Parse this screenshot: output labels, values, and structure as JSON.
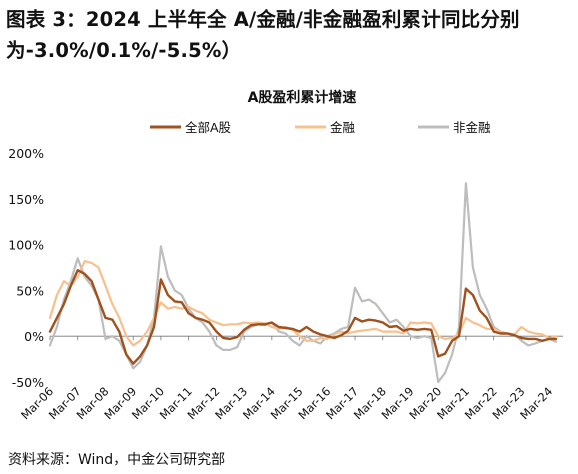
{
  "figure_title": "图表 3：2024 上半年全 A/金融/非金融盈利累计同比分别为-3.0%/0.1%/-5.5%）",
  "source_note": "资料来源：Wind，中金公司研究部",
  "colors": {
    "all_a": "#A0521E",
    "finance": "#F7C08C",
    "non_finance": "#BDBDBD"
  },
  "chart_data": {
    "type": "line",
    "title": "A股盈利累计增速",
    "legend_position": "top",
    "x_tick_labels": [
      "Mar-06",
      "Mar-07",
      "Mar-08",
      "Mar-09",
      "Mar-10",
      "Mar-11",
      "Mar-12",
      "Mar-13",
      "Mar-14",
      "Mar-15",
      "Mar-16",
      "Mar-17",
      "Mar-18",
      "Mar-19",
      "Mar-20",
      "Mar-21",
      "Mar-22",
      "Mar-23",
      "Mar-24"
    ],
    "y_ticks": [
      "-50%",
      "0%",
      "50%",
      "100%",
      "150%",
      "200%"
    ],
    "ylim": [
      -50,
      200
    ],
    "xlim": [
      2006.0,
      2024.5
    ],
    "series": [
      {
        "name": "全部A股",
        "key": "all_a",
        "x": [
          2006.0,
          2006.25,
          2006.5,
          2006.75,
          2007.0,
          2007.25,
          2007.5,
          2007.75,
          2008.0,
          2008.25,
          2008.5,
          2008.75,
          2009.0,
          2009.25,
          2009.5,
          2009.75,
          2010.0,
          2010.25,
          2010.5,
          2010.75,
          2011.0,
          2011.25,
          2011.5,
          2011.75,
          2012.0,
          2012.25,
          2012.5,
          2012.75,
          2013.0,
          2013.25,
          2013.5,
          2013.75,
          2014.0,
          2014.25,
          2014.5,
          2014.75,
          2015.0,
          2015.25,
          2015.5,
          2015.75,
          2016.0,
          2016.25,
          2016.5,
          2016.75,
          2017.0,
          2017.25,
          2017.5,
          2017.75,
          2018.0,
          2018.25,
          2018.5,
          2018.75,
          2019.0,
          2019.25,
          2019.5,
          2019.75,
          2020.0,
          2020.25,
          2020.5,
          2020.75,
          2021.0,
          2021.25,
          2021.5,
          2021.75,
          2022.0,
          2022.25,
          2022.5,
          2022.75,
          2023.0,
          2023.25,
          2023.5,
          2023.75,
          2024.0,
          2024.25
        ],
        "y": [
          5,
          20,
          35,
          55,
          72,
          68,
          60,
          40,
          20,
          18,
          5,
          -20,
          -30,
          -22,
          -10,
          10,
          62,
          45,
          38,
          37,
          25,
          20,
          18,
          15,
          5,
          -2,
          -3,
          -1,
          7,
          12,
          13,
          13,
          15,
          10,
          9,
          8,
          5,
          10,
          5,
          2,
          0,
          -2,
          1,
          6,
          20,
          16,
          18,
          17,
          15,
          10,
          11,
          6,
          8,
          7,
          8,
          7,
          -22,
          -19,
          -5,
          0,
          52,
          45,
          28,
          20,
          5,
          3,
          3,
          1,
          -2,
          -3,
          -3,
          -5,
          -3,
          -3
        ]
      },
      {
        "name": "金融",
        "key": "finance",
        "x": [
          2006.0,
          2006.25,
          2006.5,
          2006.75,
          2007.0,
          2007.25,
          2007.5,
          2007.75,
          2008.0,
          2008.25,
          2008.5,
          2008.75,
          2009.0,
          2009.25,
          2009.5,
          2009.75,
          2010.0,
          2010.25,
          2010.5,
          2010.75,
          2011.0,
          2011.25,
          2011.5,
          2011.75,
          2012.0,
          2012.25,
          2012.5,
          2012.75,
          2013.0,
          2013.25,
          2013.5,
          2013.75,
          2014.0,
          2014.25,
          2014.5,
          2014.75,
          2015.0,
          2015.25,
          2015.5,
          2015.75,
          2016.0,
          2016.25,
          2016.5,
          2016.75,
          2017.0,
          2017.25,
          2017.5,
          2017.75,
          2018.0,
          2018.25,
          2018.5,
          2018.75,
          2019.0,
          2019.25,
          2019.5,
          2019.75,
          2020.0,
          2020.25,
          2020.5,
          2020.75,
          2021.0,
          2021.25,
          2021.5,
          2021.75,
          2022.0,
          2022.25,
          2022.5,
          2022.75,
          2023.0,
          2023.25,
          2023.5,
          2023.75,
          2024.0,
          2024.25
        ],
        "y": [
          20,
          45,
          60,
          55,
          65,
          82,
          80,
          75,
          55,
          35,
          20,
          0,
          -10,
          -5,
          5,
          20,
          37,
          30,
          32,
          30,
          32,
          28,
          25,
          18,
          15,
          12,
          13,
          13,
          15,
          14,
          15,
          14,
          10,
          8,
          10,
          7,
          0,
          -5,
          -5,
          -2,
          -3,
          2,
          5,
          3,
          5,
          6,
          7,
          8,
          5,
          5,
          5,
          3,
          15,
          14,
          15,
          14,
          0,
          -3,
          -2,
          3,
          20,
          15,
          12,
          8,
          8,
          5,
          3,
          2,
          10,
          5,
          3,
          2,
          -2,
          0
        ]
      },
      {
        "name": "非金融",
        "key": "non_finance",
        "x": [
          2006.0,
          2006.25,
          2006.5,
          2006.75,
          2007.0,
          2007.25,
          2007.5,
          2007.75,
          2008.0,
          2008.25,
          2008.5,
          2008.75,
          2009.0,
          2009.25,
          2009.5,
          2009.75,
          2010.0,
          2010.25,
          2010.5,
          2010.75,
          2011.0,
          2011.25,
          2011.5,
          2011.75,
          2012.0,
          2012.25,
          2012.5,
          2012.75,
          2013.0,
          2013.25,
          2013.5,
          2013.75,
          2014.0,
          2014.25,
          2014.5,
          2014.75,
          2015.0,
          2015.25,
          2015.5,
          2015.75,
          2016.0,
          2016.25,
          2016.5,
          2016.75,
          2017.0,
          2017.25,
          2017.5,
          2017.75,
          2018.0,
          2018.25,
          2018.5,
          2018.75,
          2019.0,
          2019.25,
          2019.5,
          2019.75,
          2020.0,
          2020.25,
          2020.5,
          2020.75,
          2021.0,
          2021.25,
          2021.5,
          2021.75,
          2022.0,
          2022.25,
          2022.5,
          2022.75,
          2023.0,
          2023.25,
          2023.5,
          2023.75,
          2024.0,
          2024.25
        ],
        "y": [
          -10,
          10,
          40,
          60,
          85,
          65,
          55,
          40,
          -3,
          0,
          -5,
          -20,
          -35,
          -28,
          -10,
          20,
          98,
          65,
          50,
          45,
          30,
          20,
          15,
          5,
          -10,
          -15,
          -15,
          -12,
          5,
          10,
          13,
          12,
          15,
          5,
          3,
          -5,
          -10,
          0,
          -5,
          -8,
          0,
          3,
          8,
          10,
          53,
          38,
          40,
          35,
          25,
          15,
          18,
          10,
          0,
          -2,
          0,
          -2,
          -50,
          -40,
          -20,
          10,
          167,
          75,
          45,
          30,
          10,
          5,
          3,
          2,
          -5,
          -10,
          -8,
          -5,
          -3,
          -6
        ]
      }
    ]
  }
}
